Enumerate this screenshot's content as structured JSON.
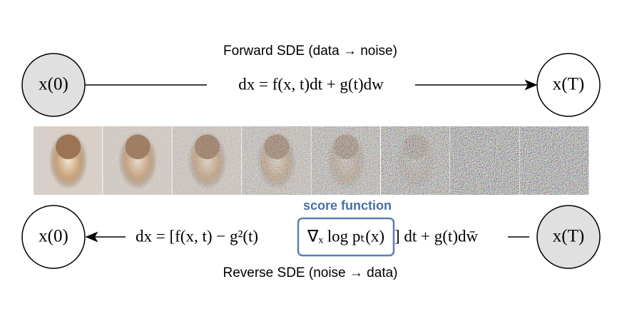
{
  "forward": {
    "title": "Forward SDE (data → noise)",
    "equation": "dx = f(x, t)dt + g(t)dw"
  },
  "reverse": {
    "title": "Reverse SDE (noise → data)",
    "equation_start": "dx = [f(x, t) − g²(t)",
    "score_term": "∇ₓ log pₜ(x)",
    "equation_end": "] dt + g(t)dw̄",
    "score_label": "score function"
  },
  "nodes": [
    {
      "label": "x(0)"
    },
    {
      "label": "x(T)"
    },
    {
      "label": "x(0)"
    },
    {
      "label": "x(T)"
    }
  ]
}
